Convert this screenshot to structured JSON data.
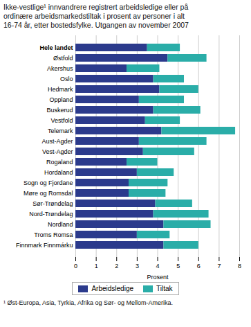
{
  "chart_data": {
    "type": "bar",
    "orientation": "horizontal",
    "stacked": true,
    "title": "Ikke-vestlige¹ innvandrere registrert arbeidsledige eller på\nordinære arbeidsmarkedstiltak i prosent av personer i alt\n16-74 år, etter bostedsfylke. Utgangen av november 2007",
    "footnote": "¹ Øst-Europa, Asia, Tyrkia, Afrika og Sør- og Mellom-Amerika.",
    "xlabel": "Prosent",
    "categories": [
      "Hele landet",
      "Østfold",
      "Akershus",
      "Oslo",
      "Hedmark",
      "Oppland",
      "Buskerud",
      "Vestfold",
      "Telemark",
      "Aust-Agder",
      "Vest-Agder",
      "Rogaland",
      "Hordaland",
      "Sogn og Fjordane",
      "Møre og Romsdal",
      "Sør-Trøndelag",
      "Nord-Trøndelag",
      "Nordland",
      "Troms Romsa",
      "Finnmark Finnmárku"
    ],
    "series": [
      {
        "name": "Arbeidsledige",
        "color": "#2b3a8c",
        "values": [
          3.5,
          4.5,
          2.5,
          3.8,
          4.1,
          3.1,
          3.8,
          3.4,
          4.2,
          3.1,
          3.3,
          2.5,
          3.0,
          2.6,
          2.6,
          3.9,
          3.8,
          4.3,
          3.0,
          4.3
        ]
      },
      {
        "name": "Tiltak",
        "color": "#2aada8",
        "values": [
          1.6,
          1.9,
          1.6,
          1.5,
          1.9,
          2.2,
          2.3,
          1.7,
          3.6,
          3.3,
          2.5,
          1.5,
          1.8,
          1.9,
          1.8,
          1.8,
          2.7,
          2.3,
          1.6,
          1.7
        ]
      }
    ],
    "xlim": [
      0,
      8
    ],
    "xticks": [
      0,
      1,
      2,
      3,
      4,
      5,
      6,
      7,
      8
    ],
    "grid": true,
    "legend": "bottom"
  }
}
